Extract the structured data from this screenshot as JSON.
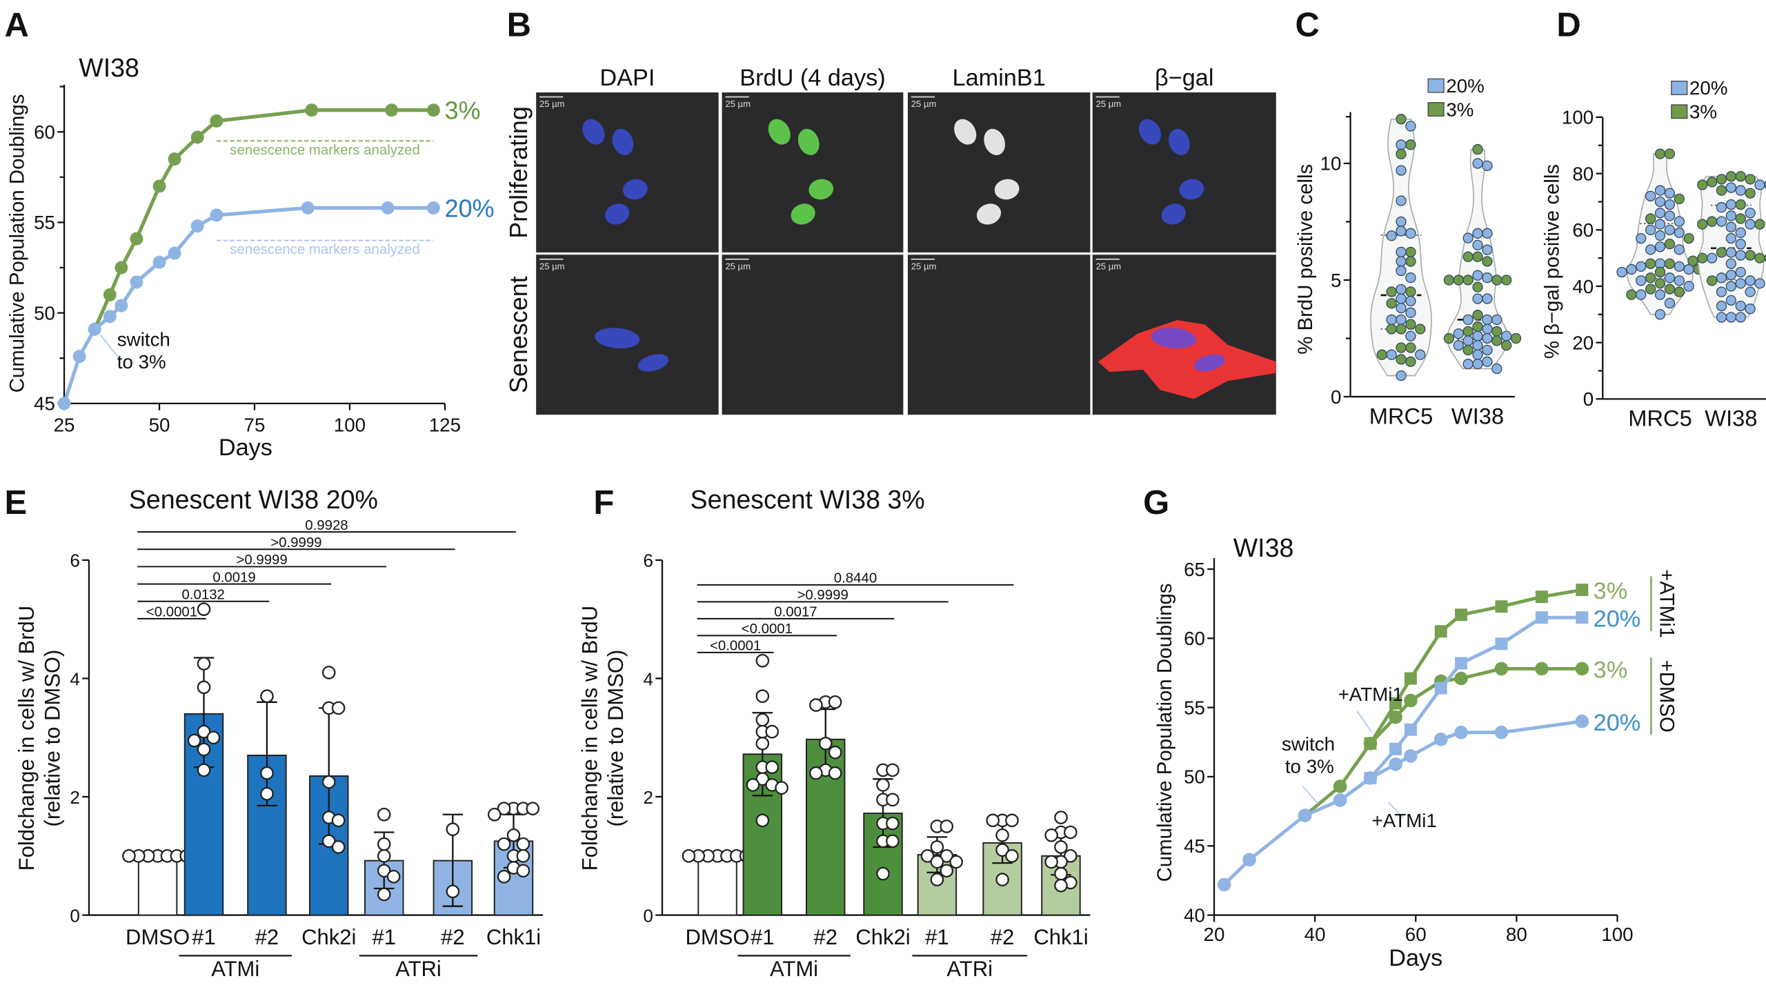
{
  "panel_labels": [
    "A",
    "B",
    "C",
    "D",
    "E",
    "F",
    "G"
  ],
  "panel_b": {
    "columns": [
      "DAPI",
      "BrdU (4 days)",
      "LaminB1",
      "β−gal"
    ],
    "rows": [
      "Proliferating",
      "Senescent"
    ],
    "scale_bar": "25 µm"
  },
  "chart_data": [
    {
      "panel": "A",
      "type": "line",
      "title": "WI38",
      "xlabel": "Days",
      "ylabel": "Cumulative Population Doublings",
      "xlim": [
        25,
        125
      ],
      "ylim": [
        45,
        62.6
      ],
      "xticks": [
        25,
        50,
        75,
        100,
        125
      ],
      "yticks": [
        45,
        50,
        55,
        60
      ],
      "grid": false,
      "series": [
        {
          "name": "3%",
          "color": "#76a04f",
          "label_color": "#5e9a3a",
          "x": [
            33,
            37,
            40,
            44,
            50,
            54,
            60,
            65,
            90,
            111,
            122
          ],
          "y": [
            49.1,
            51.0,
            52.5,
            54.1,
            57.0,
            58.5,
            59.7,
            60.6,
            61.2,
            61.2,
            61.2
          ]
        },
        {
          "name": "20%",
          "color": "#8fb4e3",
          "label_color": "#2878c0",
          "x": [
            25,
            29,
            33,
            37,
            40,
            44,
            50,
            54,
            60,
            65,
            89,
            110,
            122
          ],
          "y": [
            45.0,
            47.6,
            49.1,
            49.8,
            50.4,
            51.7,
            52.8,
            53.3,
            54.8,
            55.4,
            55.8,
            55.8,
            55.8
          ]
        }
      ],
      "reference_lines": [
        {
          "text": "senescence markers analyzed",
          "y": 59.5,
          "x": [
            65,
            122
          ],
          "color": "#8db06a"
        },
        {
          "text": "senescence markers analyzed",
          "y": 54.0,
          "x": [
            65,
            122
          ],
          "color": "#a9c4ec"
        }
      ],
      "annotation": {
        "lines": [
          "switch",
          "to 3%"
        ],
        "x": 33,
        "y": 49.1
      }
    },
    {
      "panel": "C",
      "type": "violin",
      "ylabel": "% BrdU positive cells",
      "ylim": [
        0,
        12.2
      ],
      "yticks": [
        0,
        5,
        10
      ],
      "legend": [
        {
          "label": "20%",
          "color": "#8db3e2"
        },
        {
          "label": "3%",
          "color": "#6f9a4a"
        }
      ],
      "legend_position": "top",
      "groups": [
        {
          "category": "MRC5",
          "series": [
            {
              "name": "20%",
              "values": [
                11.6,
                10.8,
                9.7,
                8.4,
                7.5,
                7.1,
                7.0,
                6.9,
                6.2,
                5.8,
                5.4,
                5.1,
                4.6,
                4.2,
                4.1,
                3.8,
                3.6,
                3.3,
                3.3,
                2.6,
                1.8,
                1.8,
                0.9
              ]
            },
            {
              "name": "3%",
              "values": [
                11.9,
                10.8,
                10.4,
                6.2,
                5.8,
                4.5,
                4.5,
                4.0,
                3.1,
                2.9,
                2.9,
                2.9,
                2.1,
                2.1,
                1.8,
                1.6,
                1.5
              ]
            }
          ]
        },
        {
          "category": "WI38",
          "series": [
            {
              "name": "20%",
              "values": [
                10.0,
                9.9,
                7.0,
                7.0,
                6.8,
                6.5,
                6.3,
                5.2,
                5.1,
                4.2,
                4.2,
                3.3,
                3.3,
                3.3,
                2.9,
                2.7,
                2.6,
                2.6,
                2.5,
                2.4,
                2.2,
                2.2,
                2.0,
                1.8,
                1.5,
                1.4,
                1.4,
                1.2
              ]
            },
            {
              "name": "3%",
              "values": [
                10.6,
                6.0,
                6.0,
                5.8,
                5.0,
                5.0,
                5.0,
                5.0,
                5.0,
                4.7,
                3.5,
                3.0,
                2.8,
                2.8,
                2.5,
                2.5,
                2.4,
                2.2,
                2.0
              ]
            }
          ]
        }
      ]
    },
    {
      "panel": "D",
      "type": "violin",
      "ylabel": "% β−gal positive cells",
      "ylim": [
        0,
        100
      ],
      "yticks": [
        0,
        20,
        40,
        60,
        80,
        100
      ],
      "legend": [
        {
          "label": "20%",
          "color": "#8db3e2"
        },
        {
          "label": "3%",
          "color": "#6f9a4a"
        }
      ],
      "legend_position": "top",
      "groups": [
        {
          "category": "MRC5",
          "series": [
            {
              "name": "20%",
              "values": [
                74,
                73,
                72,
                70,
                69,
                66,
                65,
                63,
                62,
                60,
                60,
                59,
                58,
                57,
                54,
                53,
                53,
                48,
                47,
                47,
                46,
                46,
                45,
                43,
                42,
                42,
                40,
                37,
                37,
                34,
                30
              ]
            },
            {
              "name": "3%",
              "values": [
                87,
                87,
                71,
                64,
                57,
                55,
                48,
                46,
                45,
                45,
                48,
                43,
                41,
                39,
                39,
                38,
                37
              ]
            }
          ]
        },
        {
          "category": "WI38",
          "series": [
            {
              "name": "20%",
              "values": [
                76,
                75,
                74,
                69,
                68,
                66,
                65,
                63,
                62,
                61,
                59,
                57,
                55,
                52,
                51,
                50,
                48,
                45,
                44,
                43,
                42,
                41,
                41,
                40,
                38,
                38,
                35,
                33,
                33,
                32,
                29,
                29,
                29
              ]
            },
            {
              "name": "3%",
              "values": [
                79,
                78,
                78,
                79,
                77,
                76,
                76,
                74,
                73,
                69,
                64,
                63,
                62,
                62,
                52,
                51,
                50,
                50,
                50,
                49,
                42
              ]
            }
          ]
        }
      ]
    },
    {
      "panel": "E",
      "type": "bar",
      "title": "Senescent WI38 20%",
      "ylabel": [
        "Foldchange in cells w/ BrdU",
        "(relative to DMSO)"
      ],
      "ylim": [
        0,
        6
      ],
      "yticks": [
        0,
        2,
        4,
        6
      ],
      "categories": [
        "DMSO",
        "#1",
        "#2",
        "Chk2i",
        "#1",
        "#2",
        "Chk1i"
      ],
      "groups": [
        {
          "label": "ATMi",
          "span": [
            1,
            2
          ]
        },
        {
          "label": "ATRi",
          "span": [
            4,
            5
          ]
        }
      ],
      "values": [
        1.0,
        3.4,
        2.7,
        2.35,
        0.92,
        0.92,
        1.25
      ],
      "error_low": [
        1.0,
        2.5,
        1.85,
        1.2,
        0.45,
        0.15,
        0.8
      ],
      "error_high": [
        1.0,
        4.35,
        3.6,
        3.5,
        1.4,
        1.7,
        1.7
      ],
      "colors": [
        "#ffffff",
        "#1f74bf",
        "#1f74bf",
        "#1f74bf",
        "#8fb4e3",
        "#8fb4e3",
        "#8fb4e3"
      ],
      "points": [
        [
          1,
          1,
          1,
          1,
          1,
          1,
          1
        ],
        [
          5.17,
          4.25,
          3.85,
          3.1,
          3.0,
          2.95,
          2.8,
          2.45
        ],
        [
          3.7,
          2.4,
          2.05
        ],
        [
          4.1,
          3.5,
          3.5,
          2.25,
          1.65,
          1.6,
          1.25,
          1.15
        ],
        [
          1.7,
          1.2,
          1.0,
          0.75,
          0.65,
          0.35
        ],
        [
          1.45,
          0.4
        ],
        [
          1.8,
          1.8,
          1.8,
          1.8,
          1.7,
          1.35,
          1.2,
          1.2,
          1.0,
          1.0,
          0.8,
          0.75,
          0.65
        ]
      ],
      "comparisons": [
        {
          "from": 0,
          "to": 1,
          "p": "<0.0001"
        },
        {
          "from": 0,
          "to": 2,
          "p": "0.0132"
        },
        {
          "from": 0,
          "to": 3,
          "p": "0.0019"
        },
        {
          "from": 0,
          "to": 4,
          "p": ">0.9999"
        },
        {
          "from": 0,
          "to": 5,
          "p": ">0.9999"
        },
        {
          "from": 0,
          "to": 6,
          "p": "0.9928"
        }
      ]
    },
    {
      "panel": "F",
      "type": "bar",
      "title": "Senescent WI38 3%",
      "ylabel": [
        "Foldchange in cells w/ BrdU",
        "(relative to DMSO)"
      ],
      "ylim": [
        0,
        6
      ],
      "yticks": [
        0,
        2,
        4,
        6
      ],
      "categories": [
        "DMSO",
        "#1",
        "#2",
        "Chk2i",
        "#1",
        "#2",
        "Chk1i"
      ],
      "groups": [
        {
          "label": "ATMi",
          "span": [
            1,
            2
          ]
        },
        {
          "label": "ATRi",
          "span": [
            4,
            5
          ]
        }
      ],
      "values": [
        1.0,
        2.72,
        2.97,
        1.72,
        1.02,
        1.22,
        1.0
      ],
      "error_low": [
        1.0,
        2.02,
        2.45,
        1.15,
        0.72,
        0.88,
        0.68
      ],
      "error_high": [
        1.0,
        3.42,
        3.48,
        2.3,
        1.32,
        1.6,
        1.35
      ],
      "colors": [
        "#ffffff",
        "#4e8f3e",
        "#4e8f3e",
        "#4e8f3e",
        "#b5cc9f",
        "#b5cc9f",
        "#b5cc9f"
      ],
      "points": [
        [
          1,
          1,
          1,
          1,
          1,
          1,
          1,
          1
        ],
        [
          4.3,
          3.7,
          3.3,
          3.1,
          3.1,
          2.9,
          2.5,
          2.5,
          2.3,
          2.2,
          2.2,
          2.15,
          1.6
        ],
        [
          3.6,
          3.55,
          3.6,
          2.9,
          2.75,
          2.45,
          2.4,
          2.4
        ],
        [
          2.45,
          2.45,
          2.2,
          1.95,
          1.95,
          1.55,
          1.55,
          1.25,
          1.25,
          0.7
        ],
        [
          1.5,
          1.5,
          1.15,
          1.0,
          1.0,
          0.9,
          0.9,
          0.75,
          0.6
        ],
        [
          1.6,
          1.6,
          1.6,
          1.35,
          1.1,
          1.0,
          0.6
        ],
        [
          1.65,
          1.4,
          1.4,
          1.35,
          1.15,
          1.0,
          0.9,
          0.9,
          0.7,
          0.55,
          0.5
        ]
      ],
      "comparisons": [
        {
          "from": 0,
          "to": 1,
          "p": "<0.0001"
        },
        {
          "from": 0,
          "to": 2,
          "p": "<0.0001"
        },
        {
          "from": 0,
          "to": 3,
          "p": "0.0017"
        },
        {
          "from": 0,
          "to": 4,
          "p": ">0.9999"
        },
        {
          "from": 0,
          "to": 5,
          "p": "0.8440"
        }
      ]
    },
    {
      "panel": "G",
      "type": "line",
      "title": "WI38",
      "xlabel": "Days",
      "ylabel": "Cumulative Population Doublings",
      "xlim": [
        20,
        100
      ],
      "ylim": [
        40,
        65.8
      ],
      "xticks": [
        20,
        40,
        60,
        80,
        100
      ],
      "yticks": [
        40,
        45,
        50,
        55,
        60,
        65
      ],
      "grid": false,
      "series": [
        {
          "name": "3%",
          "treatment": "+ATMi1",
          "marker": "square",
          "color": "#76a04f",
          "label_color": "#8aad63",
          "x": [
            51,
            56,
            59,
            65,
            69,
            77,
            85,
            93
          ],
          "y": [
            52.4,
            55.3,
            57.1,
            60.5,
            61.7,
            62.3,
            63.0,
            63.5
          ]
        },
        {
          "name": "3%",
          "treatment": "+DMSO",
          "marker": "circle",
          "color": "#76a04f",
          "label_color": "#8aad63",
          "x": [
            38,
            45,
            51,
            56,
            59,
            65,
            69,
            77,
            85,
            93
          ],
          "y": [
            47.2,
            49.3,
            52.4,
            54.3,
            55.5,
            56.9,
            57.1,
            57.8,
            57.8,
            57.8
          ]
        },
        {
          "name": "20%",
          "treatment": "+ATMi1",
          "marker": "square",
          "color": "#8fb4e3",
          "label_color": "#3f8fd0",
          "x": [
            51,
            56,
            59,
            65,
            69,
            77,
            85,
            93
          ],
          "y": [
            49.9,
            52.0,
            53.4,
            56.4,
            58.2,
            59.6,
            61.5,
            61.5
          ]
        },
        {
          "name": "20%",
          "treatment": "+DMSO",
          "marker": "circle",
          "color": "#8fb4e3",
          "label_color": "#3f8fd0",
          "x": [
            22,
            27,
            38,
            45,
            51,
            56,
            59,
            65,
            69,
            77,
            93
          ],
          "y": [
            42.2,
            44.0,
            47.2,
            48.3,
            49.9,
            50.9,
            51.5,
            52.7,
            53.2,
            53.2,
            54.0
          ]
        }
      ],
      "brackets": [
        {
          "label": "+ATMi1",
          "color": "#76a04f"
        },
        {
          "label": "+DMSO",
          "color": "#76a04f"
        }
      ],
      "annotations": [
        {
          "lines": [
            "+ATMi1"
          ]
        },
        {
          "lines": [
            "switch",
            "to 3%"
          ]
        },
        {
          "lines": [
            "+ATMi1"
          ]
        }
      ]
    }
  ]
}
